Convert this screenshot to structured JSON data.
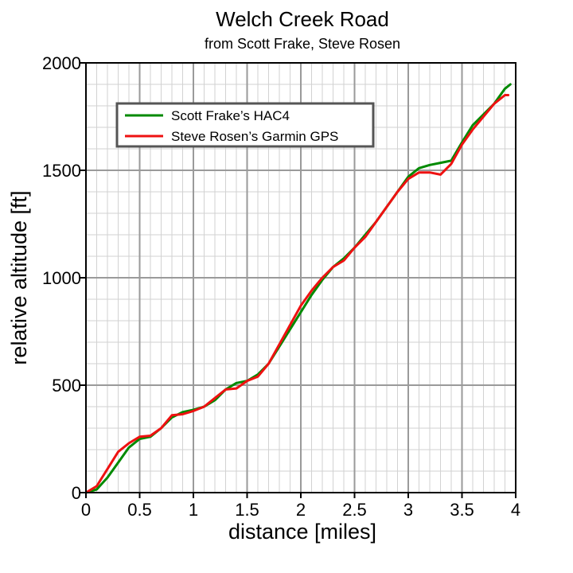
{
  "chart_data": {
    "type": "line",
    "title": "Welch Creek Road",
    "subtitle": "from Scott Frake, Steve Rosen",
    "xlabel": "distance [miles]",
    "ylabel": "relative altitude [ft]",
    "xlim": [
      0,
      4
    ],
    "ylim": [
      0,
      2000
    ],
    "x_ticks": [
      0,
      0.5,
      1,
      1.5,
      2,
      2.5,
      3,
      3.5,
      4
    ],
    "x_tick_labels": [
      "0",
      "0.5",
      "1",
      "1.5",
      "2",
      "2.5",
      "3",
      "3.5",
      "4"
    ],
    "y_ticks": [
      0,
      500,
      1000,
      1500,
      2000
    ],
    "y_tick_labels": [
      "0",
      "500",
      "1000",
      "1500",
      "2000"
    ],
    "grid": true,
    "legend_position": "top-left",
    "series": [
      {
        "name": "Scott Frake’s HAC4",
        "color": "#008a00",
        "points": [
          [
            0.0,
            0
          ],
          [
            0.1,
            15
          ],
          [
            0.2,
            70
          ],
          [
            0.3,
            140
          ],
          [
            0.4,
            210
          ],
          [
            0.5,
            250
          ],
          [
            0.6,
            260
          ],
          [
            0.7,
            300
          ],
          [
            0.8,
            350
          ],
          [
            0.9,
            375
          ],
          [
            1.0,
            385
          ],
          [
            1.1,
            400
          ],
          [
            1.2,
            430
          ],
          [
            1.3,
            480
          ],
          [
            1.4,
            510
          ],
          [
            1.5,
            520
          ],
          [
            1.6,
            550
          ],
          [
            1.7,
            600
          ],
          [
            1.8,
            680
          ],
          [
            1.9,
            760
          ],
          [
            2.0,
            840
          ],
          [
            2.1,
            920
          ],
          [
            2.2,
            990
          ],
          [
            2.3,
            1050
          ],
          [
            2.4,
            1090
          ],
          [
            2.5,
            1140
          ],
          [
            2.6,
            1200
          ],
          [
            2.7,
            1260
          ],
          [
            2.8,
            1330
          ],
          [
            2.9,
            1400
          ],
          [
            3.0,
            1470
          ],
          [
            3.1,
            1510
          ],
          [
            3.2,
            1525
          ],
          [
            3.3,
            1535
          ],
          [
            3.4,
            1545
          ],
          [
            3.5,
            1630
          ],
          [
            3.6,
            1710
          ],
          [
            3.7,
            1760
          ],
          [
            3.8,
            1810
          ],
          [
            3.9,
            1880
          ],
          [
            3.95,
            1900
          ]
        ]
      },
      {
        "name": "Steve Rosen’s Garmin GPS",
        "color": "#ee1111",
        "points": [
          [
            0.0,
            0
          ],
          [
            0.1,
            30
          ],
          [
            0.2,
            110
          ],
          [
            0.3,
            190
          ],
          [
            0.4,
            230
          ],
          [
            0.5,
            260
          ],
          [
            0.6,
            265
          ],
          [
            0.7,
            300
          ],
          [
            0.8,
            360
          ],
          [
            0.9,
            365
          ],
          [
            1.0,
            380
          ],
          [
            1.1,
            400
          ],
          [
            1.2,
            440
          ],
          [
            1.3,
            480
          ],
          [
            1.4,
            485
          ],
          [
            1.5,
            520
          ],
          [
            1.6,
            540
          ],
          [
            1.7,
            600
          ],
          [
            1.8,
            690
          ],
          [
            1.9,
            780
          ],
          [
            2.0,
            870
          ],
          [
            2.1,
            940
          ],
          [
            2.2,
            1000
          ],
          [
            2.3,
            1050
          ],
          [
            2.4,
            1080
          ],
          [
            2.5,
            1140
          ],
          [
            2.6,
            1190
          ],
          [
            2.7,
            1260
          ],
          [
            2.8,
            1330
          ],
          [
            2.9,
            1400
          ],
          [
            3.0,
            1460
          ],
          [
            3.1,
            1490
          ],
          [
            3.2,
            1490
          ],
          [
            3.3,
            1480
          ],
          [
            3.4,
            1530
          ],
          [
            3.5,
            1620
          ],
          [
            3.6,
            1690
          ],
          [
            3.7,
            1750
          ],
          [
            3.8,
            1810
          ],
          [
            3.9,
            1850
          ],
          [
            3.93,
            1850
          ]
        ]
      }
    ]
  }
}
